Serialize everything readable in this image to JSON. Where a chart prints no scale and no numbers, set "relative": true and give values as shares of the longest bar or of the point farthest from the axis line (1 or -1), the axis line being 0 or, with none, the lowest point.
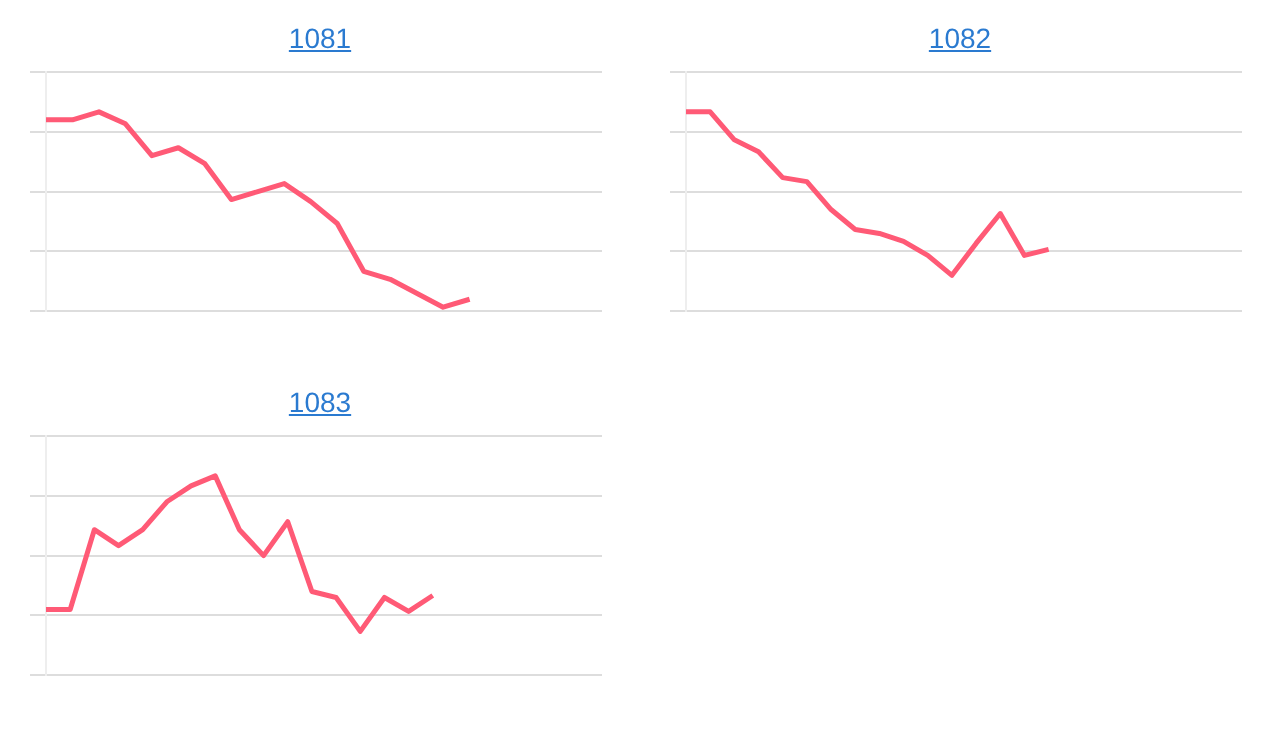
{
  "chart_data": [
    {
      "type": "line",
      "title": "1081",
      "relative": true,
      "grid": "y",
      "legend": false,
      "marker": "none",
      "line_style": "solid",
      "color": "#ff5a76",
      "categories": [
        null,
        null,
        null,
        null,
        null,
        null,
        null,
        null,
        null,
        null,
        null,
        null,
        null,
        null,
        null,
        null,
        null,
        null,
        null,
        null,
        null,
        null
      ],
      "values": [
        0.96,
        0.96,
        1,
        0.94,
        0.78,
        0.82,
        0.74,
        0.56,
        0.6,
        0.64,
        0.55,
        0.44,
        0.2,
        0.16,
        0.09,
        0.02,
        0.06,
        null,
        null,
        null,
        null,
        null
      ]
    },
    {
      "type": "line",
      "title": "1082",
      "relative": true,
      "grid": "y",
      "legend": false,
      "marker": "none",
      "line_style": "solid",
      "color": "#ff5a76",
      "categories": [
        null,
        null,
        null,
        null,
        null,
        null,
        null,
        null,
        null,
        null,
        null,
        null,
        null,
        null,
        null,
        null,
        null,
        null,
        null,
        null,
        null,
        null,
        null,
        null
      ],
      "values": [
        1,
        1,
        0.86,
        0.8,
        0.67,
        0.65,
        0.51,
        0.41,
        0.39,
        0.35,
        0.28,
        0.18,
        0.34,
        0.49,
        0.28,
        0.31,
        null,
        null,
        null,
        null,
        null,
        null,
        null,
        null
      ]
    },
    {
      "type": "line",
      "title": "1083",
      "relative": true,
      "grid": "y",
      "legend": false,
      "marker": "none",
      "line_style": "solid",
      "color": "#ff5a76",
      "categories": [
        null,
        null,
        null,
        null,
        null,
        null,
        null,
        null,
        null,
        null,
        null,
        null,
        null,
        null,
        null,
        null,
        null,
        null,
        null,
        null,
        null,
        null,
        null,
        null
      ],
      "values": [
        0.33,
        0.33,
        0.73,
        0.65,
        0.73,
        0.87,
        0.95,
        1,
        0.73,
        0.6,
        0.77,
        0.42,
        0.39,
        0.22,
        0.39,
        0.32,
        0.4,
        null,
        null,
        null,
        null,
        null,
        null,
        null
      ]
    }
  ]
}
